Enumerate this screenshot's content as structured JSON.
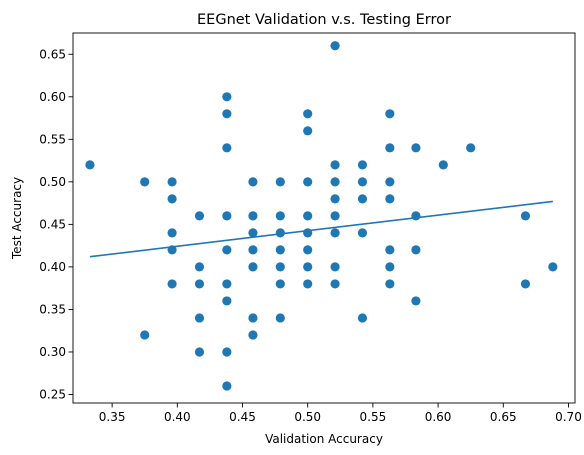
{
  "chart_data": {
    "type": "scatter",
    "title": "EEGnet Validation v.s. Testing Error",
    "xlabel": "Validation Accuracy",
    "ylabel": "Test Accuracy",
    "xlim": [
      0.32,
      0.705
    ],
    "ylim": [
      0.24,
      0.675
    ],
    "xticks": [
      "0.35",
      "0.40",
      "0.45",
      "0.50",
      "0.55",
      "0.60",
      "0.65",
      "0.70"
    ],
    "yticks": [
      "0.25",
      "0.30",
      "0.35",
      "0.40",
      "0.45",
      "0.50",
      "0.55",
      "0.60",
      "0.65"
    ],
    "grid": false,
    "legend": "none",
    "colors": {
      "points": "#1f77b4",
      "fit_line": "#1f77b4"
    },
    "series": [
      {
        "kind": "points",
        "points": [
          [
            0.333,
            0.52
          ],
          [
            0.375,
            0.5
          ],
          [
            0.375,
            0.32
          ],
          [
            0.396,
            0.5
          ],
          [
            0.396,
            0.48
          ],
          [
            0.396,
            0.44
          ],
          [
            0.396,
            0.42
          ],
          [
            0.396,
            0.38
          ],
          [
            0.417,
            0.46
          ],
          [
            0.417,
            0.4
          ],
          [
            0.417,
            0.38
          ],
          [
            0.417,
            0.34
          ],
          [
            0.417,
            0.3
          ],
          [
            0.438,
            0.6
          ],
          [
            0.438,
            0.58
          ],
          [
            0.438,
            0.54
          ],
          [
            0.438,
            0.46
          ],
          [
            0.438,
            0.42
          ],
          [
            0.438,
            0.38
          ],
          [
            0.438,
            0.36
          ],
          [
            0.438,
            0.3
          ],
          [
            0.438,
            0.26
          ],
          [
            0.458,
            0.5
          ],
          [
            0.458,
            0.46
          ],
          [
            0.458,
            0.44
          ],
          [
            0.458,
            0.42
          ],
          [
            0.458,
            0.4
          ],
          [
            0.458,
            0.34
          ],
          [
            0.458,
            0.32
          ],
          [
            0.479,
            0.5
          ],
          [
            0.479,
            0.46
          ],
          [
            0.479,
            0.44
          ],
          [
            0.479,
            0.42
          ],
          [
            0.479,
            0.4
          ],
          [
            0.479,
            0.38
          ],
          [
            0.479,
            0.34
          ],
          [
            0.5,
            0.58
          ],
          [
            0.5,
            0.56
          ],
          [
            0.5,
            0.5
          ],
          [
            0.5,
            0.46
          ],
          [
            0.5,
            0.44
          ],
          [
            0.5,
            0.42
          ],
          [
            0.5,
            0.4
          ],
          [
            0.5,
            0.38
          ],
          [
            0.521,
            0.66
          ],
          [
            0.521,
            0.52
          ],
          [
            0.521,
            0.5
          ],
          [
            0.521,
            0.48
          ],
          [
            0.521,
            0.46
          ],
          [
            0.521,
            0.44
          ],
          [
            0.521,
            0.4
          ],
          [
            0.521,
            0.38
          ],
          [
            0.542,
            0.52
          ],
          [
            0.542,
            0.5
          ],
          [
            0.542,
            0.48
          ],
          [
            0.542,
            0.44
          ],
          [
            0.542,
            0.34
          ],
          [
            0.563,
            0.58
          ],
          [
            0.563,
            0.54
          ],
          [
            0.563,
            0.5
          ],
          [
            0.563,
            0.48
          ],
          [
            0.563,
            0.42
          ],
          [
            0.563,
            0.4
          ],
          [
            0.563,
            0.38
          ],
          [
            0.583,
            0.54
          ],
          [
            0.583,
            0.46
          ],
          [
            0.583,
            0.42
          ],
          [
            0.583,
            0.36
          ],
          [
            0.604,
            0.52
          ],
          [
            0.625,
            0.54
          ],
          [
            0.667,
            0.46
          ],
          [
            0.667,
            0.38
          ],
          [
            0.688,
            0.4
          ]
        ]
      },
      {
        "kind": "fit_line",
        "points": [
          [
            0.333,
            0.412
          ],
          [
            0.688,
            0.477
          ]
        ]
      }
    ]
  }
}
